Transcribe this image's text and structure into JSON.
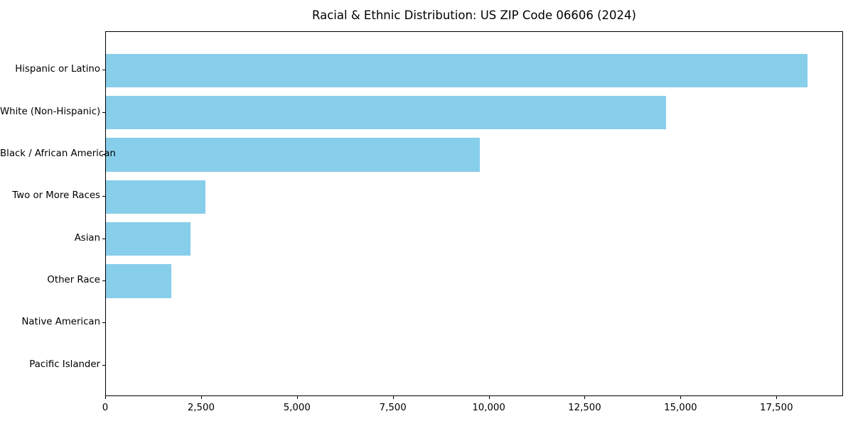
{
  "chart_data": {
    "type": "bar",
    "orientation": "horizontal",
    "title": "Racial & Ethnic Distribution: US ZIP Code 06606 (2024)",
    "categories": [
      "Hispanic or Latino",
      "White (Non-Hispanic)",
      "Black / African American",
      "Two or More Races",
      "Asian",
      "Other Race",
      "Native American",
      "Pacific Islander"
    ],
    "values": [
      18300,
      14600,
      9750,
      2600,
      2200,
      1700,
      0,
      0
    ],
    "xlabel": "",
    "ylabel": "",
    "xlim": [
      0,
      19200
    ],
    "xticks": [
      0,
      2500,
      5000,
      7500,
      10000,
      12500,
      15000,
      17500
    ],
    "xtick_labels": [
      "0",
      "2,500",
      "5,000",
      "7,500",
      "10,000",
      "12,500",
      "15,000",
      "17,500"
    ],
    "bar_color": "#87CEEB",
    "axis_color": "#000000",
    "background_color": "#ffffff",
    "grid": false,
    "legend": false
  }
}
